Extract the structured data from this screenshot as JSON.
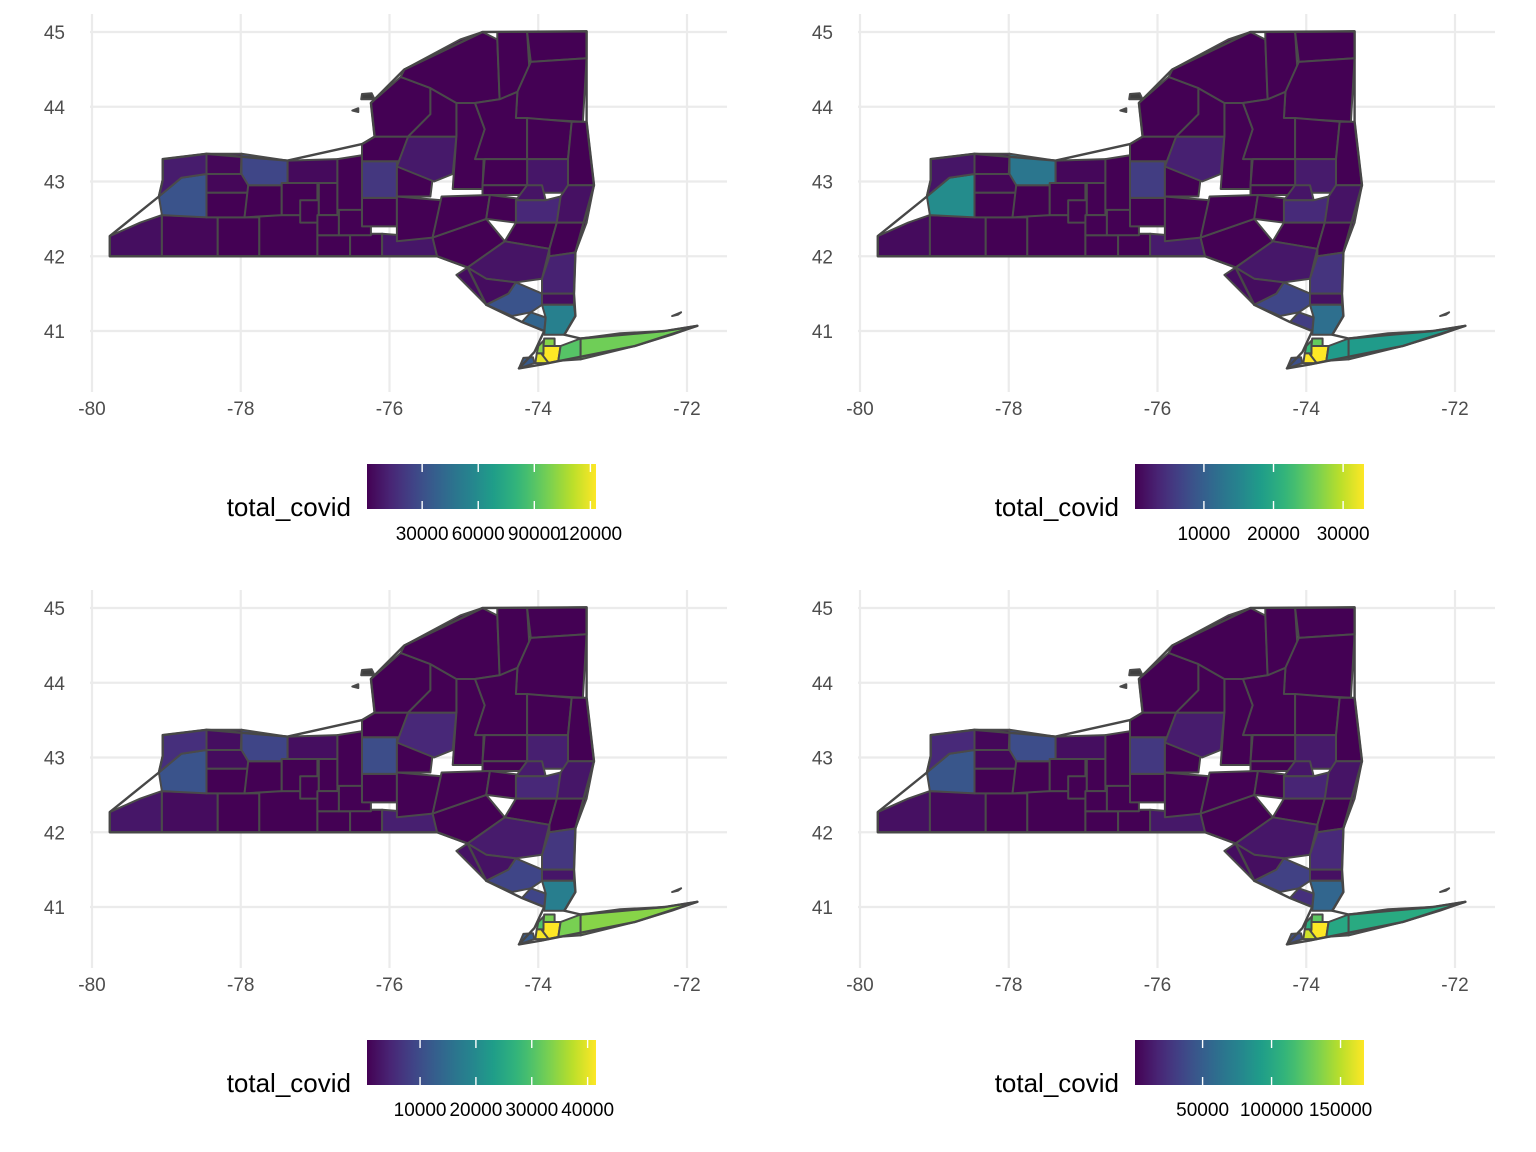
{
  "chart_data": [
    {
      "type": "choropleth",
      "x_ticks": [
        "-80",
        "-78",
        "-76",
        "-74",
        "-72"
      ],
      "y_ticks": [
        "41",
        "42",
        "43",
        "44",
        "45"
      ],
      "xlim": [
        -80.3,
        -71.4
      ],
      "ylim": [
        40.3,
        45.25
      ],
      "grid": true,
      "legend": {
        "title": "total_covid",
        "position": "bottom",
        "range": [
          500,
          123000
        ],
        "tick_values": [
          30000,
          60000,
          90000,
          120000
        ],
        "tick_labels": [
          "30000",
          "60000",
          "90000",
          "120000"
        ]
      },
      "region_values": {
        "niagara": 10000,
        "orleans": 2500,
        "monroe": 26000,
        "wayne": 3500,
        "erie": 32000,
        "genesee": 2500,
        "chautauqua": 5000,
        "cattaraugus": 2500,
        "onondaga": 20000,
        "oneida": 9000,
        "broome": 8000,
        "albany": 14000,
        "saratoga": 8000,
        "schenectady": 7000,
        "rensselaer": 6000,
        "dutchess": 12000,
        "ulster": 7000,
        "sullivan": 4500,
        "orange": 32000,
        "putnam": 5000,
        "rockland": 40000,
        "westchester": 54000,
        "bronx": 100000,
        "newyork": 100000,
        "queens": 123000,
        "kings": 118000,
        "richmond": 35000,
        "nassau": 90000,
        "suffolk": 96000
      }
    },
    {
      "type": "choropleth",
      "x_ticks": [
        "-80",
        "-78",
        "-76",
        "-74",
        "-72"
      ],
      "y_ticks": [
        "41",
        "42",
        "43",
        "44",
        "45"
      ],
      "xlim": [
        -80.3,
        -71.4
      ],
      "ylim": [
        40.3,
        45.25
      ],
      "grid": true,
      "legend": {
        "title": "total_covid",
        "position": "bottom",
        "range": [
          100,
          33000
        ],
        "tick_values": [
          10000,
          20000,
          30000
        ],
        "tick_labels": [
          "10000",
          "20000",
          "30000"
        ]
      },
      "region_values": {
        "niagara": 2000,
        "orleans": 500,
        "monroe": 13000,
        "wayne": 700,
        "erie": 16000,
        "genesee": 600,
        "chautauqua": 1000,
        "cattaraugus": 600,
        "onondaga": 6000,
        "oneida": 3000,
        "broome": 2500,
        "albany": 4000,
        "saratoga": 2500,
        "schenectady": 2000,
        "rensselaer": 1800,
        "dutchess": 5000,
        "ulster": 2200,
        "sullivan": 1200,
        "orange": 7000,
        "putnam": 1500,
        "rockland": 6000,
        "westchester": 12000,
        "bronx": 25000,
        "newyork": 22000,
        "queens": 33000,
        "kings": 33000,
        "richmond": 8000,
        "nassau": 18000,
        "suffolk": 18000
      }
    },
    {
      "type": "choropleth",
      "x_ticks": [
        "-80",
        "-78",
        "-76",
        "-74",
        "-72"
      ],
      "y_ticks": [
        "41",
        "42",
        "43",
        "44",
        "45"
      ],
      "xlim": [
        -80.3,
        -71.4
      ],
      "ylim": [
        40.3,
        45.25
      ],
      "grid": true,
      "legend": {
        "title": "total_covid",
        "position": "bottom",
        "range": [
          500,
          41500
        ],
        "tick_values": [
          10000,
          20000,
          30000,
          40000
        ],
        "tick_labels": [
          "10000",
          "20000",
          "30000",
          "40000"
        ]
      },
      "region_values": {
        "niagara": 6000,
        "orleans": 2000,
        "monroe": 9000,
        "wayne": 2000,
        "erie": 11000,
        "genesee": 1800,
        "chautauqua": 3000,
        "cattaraugus": 1800,
        "onondaga": 10000,
        "oneida": 5000,
        "broome": 4000,
        "albany": 5000,
        "saratoga": 4000,
        "schenectady": 3500,
        "rensselaer": 3000,
        "dutchess": 7000,
        "ulster": 3500,
        "sullivan": 2500,
        "orange": 9000,
        "putnam": 3000,
        "rockland": 9000,
        "westchester": 18000,
        "bronx": 33000,
        "newyork": 30000,
        "queens": 41500,
        "kings": 41000,
        "richmond": 12000,
        "nassau": 33000,
        "suffolk": 34000
      }
    },
    {
      "type": "choropleth",
      "x_ticks": [
        "-80",
        "-78",
        "-76",
        "-74",
        "-72"
      ],
      "y_ticks": [
        "41",
        "42",
        "43",
        "44",
        "45"
      ],
      "xlim": [
        -80.3,
        -71.4
      ],
      "ylim": [
        40.3,
        45.25
      ],
      "grid": true,
      "legend": {
        "title": "total_covid",
        "position": "bottom",
        "range": [
          1000,
          167000
        ],
        "tick_values": [
          50000,
          100000,
          150000
        ],
        "tick_labels": [
          "50000",
          "100000",
          "150000"
        ]
      },
      "region_values": {
        "niagara": 20000,
        "orleans": 4000,
        "monroe": 40000,
        "wayne": 7000,
        "erie": 45000,
        "genesee": 4500,
        "chautauqua": 8000,
        "cattaraugus": 5000,
        "onondaga": 28000,
        "oneida": 14000,
        "broome": 12000,
        "albany": 18000,
        "saratoga": 13000,
        "schenectady": 11000,
        "rensselaer": 10000,
        "dutchess": 20000,
        "ulster": 11000,
        "sullivan": 7000,
        "orange": 33000,
        "putnam": 8000,
        "rockland": 24000,
        "westchester": 55000,
        "bronx": 125000,
        "newyork": 105000,
        "queens": 167000,
        "kings": 155000,
        "richmond": 40000,
        "nassau": 100000,
        "suffolk": 102000
      }
    }
  ],
  "viridis": [
    "#440154",
    "#482878",
    "#3e4a89",
    "#31688e",
    "#26828e",
    "#1f9e89",
    "#35b779",
    "#6ece58",
    "#b5de2b",
    "#fde725"
  ]
}
